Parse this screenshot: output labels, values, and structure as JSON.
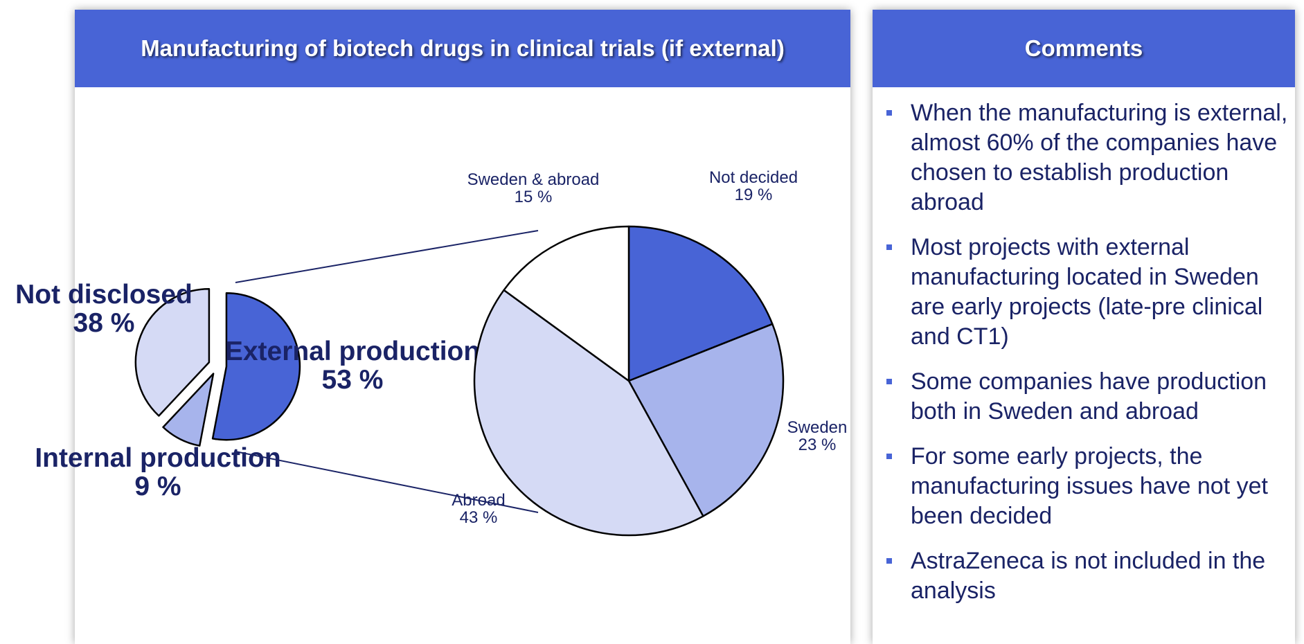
{
  "panel_title": "Manufacturing of biotech drugs in clinical trials (if external)",
  "chart_data": [
    {
      "type": "pie",
      "categories": [
        "External production",
        "Internal production",
        "Not disclosed"
      ],
      "values": [
        53,
        9,
        38
      ],
      "value_labels": [
        "53 %",
        "9 %",
        "38 %"
      ],
      "colors": [
        "#4864d6",
        "#a7b4ec",
        "#d5daf5"
      ]
    },
    {
      "type": "pie",
      "categories": [
        "Not decided",
        "Sweden",
        "Abroad",
        "Sweden & abroad"
      ],
      "values": [
        19,
        23,
        43,
        15
      ],
      "value_labels": [
        "19 %",
        "23 %",
        "43 %",
        "15 %"
      ],
      "colors": [
        "#4864d6",
        "#a7b4ec",
        "#d5daf5",
        "#ffffff"
      ]
    }
  ],
  "comments": {
    "title": "Comments",
    "items": [
      "When the manufacturing is external, almost 60% of the companies have chosen to establish production abroad",
      "Most projects with external manufacturing located in Sweden are early projects (late-pre clinical and CT1)",
      "Some companies have production both in Sweden and abroad",
      "For some early projects, the manufacturing issues have not yet been decided",
      "AstraZeneca is not included in the analysis"
    ]
  }
}
